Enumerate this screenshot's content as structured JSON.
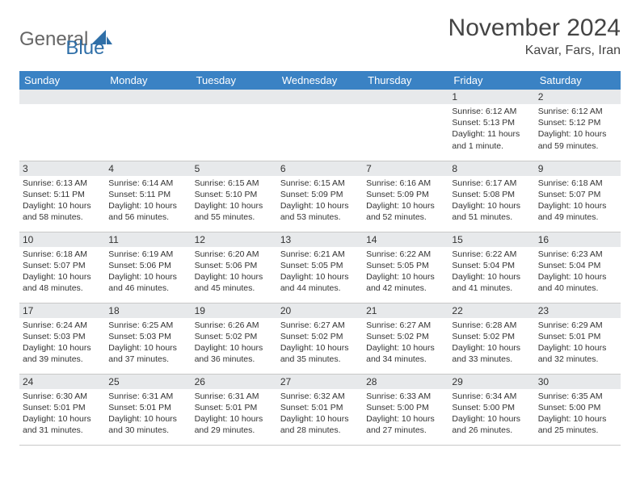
{
  "logo": {
    "general": "General",
    "blue": "Blue"
  },
  "title": "November 2024",
  "location": "Kavar, Fars, Iran",
  "colors": {
    "header_bg": "#3a82c4",
    "header_text": "#ffffff",
    "daynum_bg": "#e7e9eb",
    "border": "#c8c8c8",
    "logo_gray": "#666666",
    "logo_blue": "#2f6fa8"
  },
  "weekdays": [
    "Sunday",
    "Monday",
    "Tuesday",
    "Wednesday",
    "Thursday",
    "Friday",
    "Saturday"
  ],
  "weeks": [
    [
      {
        "blank": true
      },
      {
        "blank": true
      },
      {
        "blank": true
      },
      {
        "blank": true
      },
      {
        "blank": true
      },
      {
        "day": "1",
        "sunrise": "Sunrise: 6:12 AM",
        "sunset": "Sunset: 5:13 PM",
        "daylight": "Daylight: 11 hours and 1 minute."
      },
      {
        "day": "2",
        "sunrise": "Sunrise: 6:12 AM",
        "sunset": "Sunset: 5:12 PM",
        "daylight": "Daylight: 10 hours and 59 minutes."
      }
    ],
    [
      {
        "day": "3",
        "sunrise": "Sunrise: 6:13 AM",
        "sunset": "Sunset: 5:11 PM",
        "daylight": "Daylight: 10 hours and 58 minutes."
      },
      {
        "day": "4",
        "sunrise": "Sunrise: 6:14 AM",
        "sunset": "Sunset: 5:11 PM",
        "daylight": "Daylight: 10 hours and 56 minutes."
      },
      {
        "day": "5",
        "sunrise": "Sunrise: 6:15 AM",
        "sunset": "Sunset: 5:10 PM",
        "daylight": "Daylight: 10 hours and 55 minutes."
      },
      {
        "day": "6",
        "sunrise": "Sunrise: 6:15 AM",
        "sunset": "Sunset: 5:09 PM",
        "daylight": "Daylight: 10 hours and 53 minutes."
      },
      {
        "day": "7",
        "sunrise": "Sunrise: 6:16 AM",
        "sunset": "Sunset: 5:09 PM",
        "daylight": "Daylight: 10 hours and 52 minutes."
      },
      {
        "day": "8",
        "sunrise": "Sunrise: 6:17 AM",
        "sunset": "Sunset: 5:08 PM",
        "daylight": "Daylight: 10 hours and 51 minutes."
      },
      {
        "day": "9",
        "sunrise": "Sunrise: 6:18 AM",
        "sunset": "Sunset: 5:07 PM",
        "daylight": "Daylight: 10 hours and 49 minutes."
      }
    ],
    [
      {
        "day": "10",
        "sunrise": "Sunrise: 6:18 AM",
        "sunset": "Sunset: 5:07 PM",
        "daylight": "Daylight: 10 hours and 48 minutes."
      },
      {
        "day": "11",
        "sunrise": "Sunrise: 6:19 AM",
        "sunset": "Sunset: 5:06 PM",
        "daylight": "Daylight: 10 hours and 46 minutes."
      },
      {
        "day": "12",
        "sunrise": "Sunrise: 6:20 AM",
        "sunset": "Sunset: 5:06 PM",
        "daylight": "Daylight: 10 hours and 45 minutes."
      },
      {
        "day": "13",
        "sunrise": "Sunrise: 6:21 AM",
        "sunset": "Sunset: 5:05 PM",
        "daylight": "Daylight: 10 hours and 44 minutes."
      },
      {
        "day": "14",
        "sunrise": "Sunrise: 6:22 AM",
        "sunset": "Sunset: 5:05 PM",
        "daylight": "Daylight: 10 hours and 42 minutes."
      },
      {
        "day": "15",
        "sunrise": "Sunrise: 6:22 AM",
        "sunset": "Sunset: 5:04 PM",
        "daylight": "Daylight: 10 hours and 41 minutes."
      },
      {
        "day": "16",
        "sunrise": "Sunrise: 6:23 AM",
        "sunset": "Sunset: 5:04 PM",
        "daylight": "Daylight: 10 hours and 40 minutes."
      }
    ],
    [
      {
        "day": "17",
        "sunrise": "Sunrise: 6:24 AM",
        "sunset": "Sunset: 5:03 PM",
        "daylight": "Daylight: 10 hours and 39 minutes."
      },
      {
        "day": "18",
        "sunrise": "Sunrise: 6:25 AM",
        "sunset": "Sunset: 5:03 PM",
        "daylight": "Daylight: 10 hours and 37 minutes."
      },
      {
        "day": "19",
        "sunrise": "Sunrise: 6:26 AM",
        "sunset": "Sunset: 5:02 PM",
        "daylight": "Daylight: 10 hours and 36 minutes."
      },
      {
        "day": "20",
        "sunrise": "Sunrise: 6:27 AM",
        "sunset": "Sunset: 5:02 PM",
        "daylight": "Daylight: 10 hours and 35 minutes."
      },
      {
        "day": "21",
        "sunrise": "Sunrise: 6:27 AM",
        "sunset": "Sunset: 5:02 PM",
        "daylight": "Daylight: 10 hours and 34 minutes."
      },
      {
        "day": "22",
        "sunrise": "Sunrise: 6:28 AM",
        "sunset": "Sunset: 5:02 PM",
        "daylight": "Daylight: 10 hours and 33 minutes."
      },
      {
        "day": "23",
        "sunrise": "Sunrise: 6:29 AM",
        "sunset": "Sunset: 5:01 PM",
        "daylight": "Daylight: 10 hours and 32 minutes."
      }
    ],
    [
      {
        "day": "24",
        "sunrise": "Sunrise: 6:30 AM",
        "sunset": "Sunset: 5:01 PM",
        "daylight": "Daylight: 10 hours and 31 minutes."
      },
      {
        "day": "25",
        "sunrise": "Sunrise: 6:31 AM",
        "sunset": "Sunset: 5:01 PM",
        "daylight": "Daylight: 10 hours and 30 minutes."
      },
      {
        "day": "26",
        "sunrise": "Sunrise: 6:31 AM",
        "sunset": "Sunset: 5:01 PM",
        "daylight": "Daylight: 10 hours and 29 minutes."
      },
      {
        "day": "27",
        "sunrise": "Sunrise: 6:32 AM",
        "sunset": "Sunset: 5:01 PM",
        "daylight": "Daylight: 10 hours and 28 minutes."
      },
      {
        "day": "28",
        "sunrise": "Sunrise: 6:33 AM",
        "sunset": "Sunset: 5:00 PM",
        "daylight": "Daylight: 10 hours and 27 minutes."
      },
      {
        "day": "29",
        "sunrise": "Sunrise: 6:34 AM",
        "sunset": "Sunset: 5:00 PM",
        "daylight": "Daylight: 10 hours and 26 minutes."
      },
      {
        "day": "30",
        "sunrise": "Sunrise: 6:35 AM",
        "sunset": "Sunset: 5:00 PM",
        "daylight": "Daylight: 10 hours and 25 minutes."
      }
    ]
  ]
}
